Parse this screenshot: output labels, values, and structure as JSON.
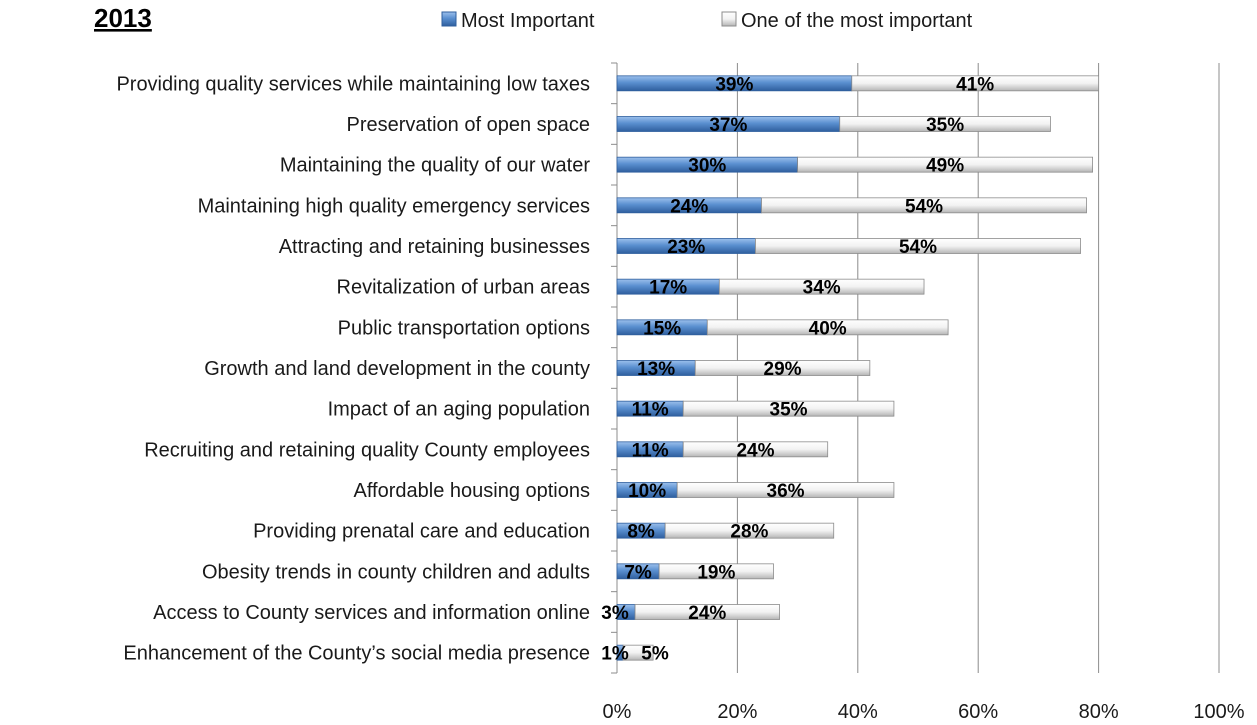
{
  "chart_data": {
    "type": "bar",
    "orientation": "horizontal",
    "stacked": true,
    "title": "2013",
    "xlabel": "",
    "ylabel": "",
    "xlim": [
      0,
      100
    ],
    "x_ticks": [
      "0%",
      "20%",
      "40%",
      "60%",
      "80%",
      "100%"
    ],
    "grid": "vertical",
    "legend": "top",
    "categories": [
      "Providing quality services while maintaining low taxes",
      "Preservation of open space",
      "Maintaining the quality of our water",
      "Maintaining high quality emergency services",
      "Attracting and retaining businesses",
      "Revitalization of urban areas",
      "Public transportation options",
      "Growth and land development in the county",
      "Impact of an aging population",
      "Recruiting and retaining quality County employees",
      "Affordable housing options",
      "Providing prenatal care and education",
      "Obesity trends in county children and adults",
      "Access to County services and information online",
      "Enhancement of the County’s social media presence"
    ],
    "series": [
      {
        "name": "Most Important",
        "color": "#4f81bd",
        "values": [
          39,
          37,
          30,
          24,
          23,
          17,
          15,
          13,
          11,
          11,
          10,
          8,
          7,
          3,
          1
        ],
        "labels": [
          "39%",
          "37%",
          "30%",
          "24%",
          "23%",
          "17%",
          "15%",
          "13%",
          "11%",
          "11%",
          "10%",
          "8%",
          "7%",
          "3%",
          "1%"
        ]
      },
      {
        "name": "One of the most important",
        "color": "#d9d9d9",
        "values": [
          41,
          35,
          49,
          54,
          54,
          34,
          40,
          29,
          35,
          24,
          36,
          28,
          19,
          24,
          5
        ],
        "labels": [
          "41%",
          "35%",
          "49%",
          "54%",
          "54%",
          "34%",
          "40%",
          "29%",
          "35%",
          "24%",
          "36%",
          "28%",
          "19%",
          "24%",
          "5%"
        ]
      }
    ]
  }
}
